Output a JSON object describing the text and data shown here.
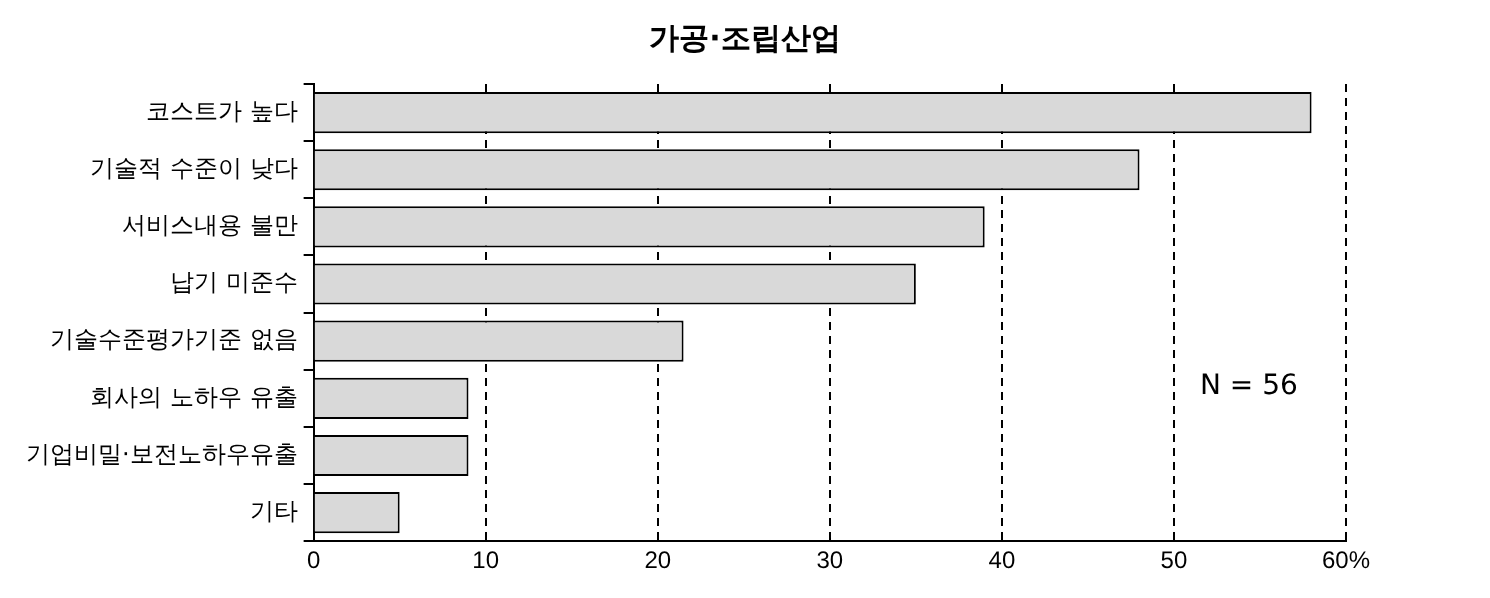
{
  "chart_data": {
    "type": "bar",
    "orientation": "horizontal",
    "title": "가공·조립산업",
    "categories": [
      "코스트가 높다",
      "기술적 수준이 낮다",
      "서비스내용 불만",
      "납기 미준수",
      "기술수준평가기준 없음",
      "회사의 노하우 유출",
      "기업비밀·보전노하우유출",
      "기타"
    ],
    "values": [
      58,
      48,
      39,
      35,
      21.5,
      9,
      9,
      5
    ],
    "color": "#d9d9d9",
    "xlim": [
      0,
      60
    ],
    "xticks": [
      0,
      10,
      20,
      30,
      40,
      50,
      {
        "value": 60,
        "label": "60%"
      }
    ],
    "grid": "x",
    "legend": false,
    "annotations": [
      "N = 56"
    ]
  }
}
